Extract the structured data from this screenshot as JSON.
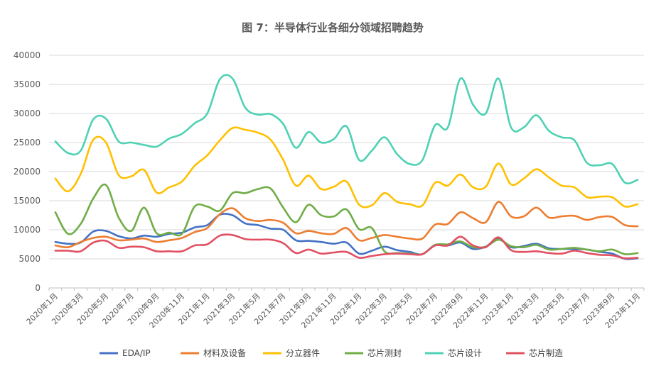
{
  "chart_data": {
    "type": "line",
    "title": "图 7：半导体行业各细分领域招聘趋势",
    "xlabel": "",
    "ylabel": "",
    "ylim": [
      0,
      40000
    ],
    "yticks": [
      0,
      5000,
      10000,
      15000,
      20000,
      25000,
      30000,
      35000,
      40000
    ],
    "grid": true,
    "legend_position": "bottom",
    "x": [
      "2020年1月",
      "2020年2月",
      "2020年3月",
      "2020年4月",
      "2020年5月",
      "2020年6月",
      "2020年7月",
      "2020年8月",
      "2020年9月",
      "2020年10月",
      "2020年11月",
      "2020年12月",
      "2021年1月",
      "2021年2月",
      "2021年3月",
      "2021年4月",
      "2021年5月",
      "2021年6月",
      "2021年7月",
      "2021年8月",
      "2021年9月",
      "2021年10月",
      "2021年11月",
      "2021年12月",
      "2022年1月",
      "2022年2月",
      "2022年3月",
      "2022年4月",
      "2022年5月",
      "2022年6月",
      "2022年7月",
      "2022年8月",
      "2022年9月",
      "2022年10月",
      "2022年11月",
      "2022年12月",
      "2023年1月",
      "2023年2月",
      "2023年3月",
      "2023年4月",
      "2023年5月",
      "2023年6月",
      "2023年7月",
      "2023年8月",
      "2023年9月",
      "2023年10月",
      "2023年11月"
    ],
    "x_tick_labels": [
      "2020年1月",
      "2020年3月",
      "2020年5月",
      "2020年7月",
      "2020年9月",
      "2020年11月",
      "2021年1月",
      "2021年3月",
      "2021年5月",
      "2021年7月",
      "2021年9月",
      "2021年11月",
      "2022年1月",
      "2022年3月",
      "2022年5月",
      "2022年7月",
      "2022年9月",
      "2022年11月",
      "2023年1月",
      "2023年3月",
      "2023年5月",
      "2023年7月",
      "2023年9月",
      "2023年11月"
    ],
    "series": [
      {
        "name": "EDA/IP",
        "color": "#4472C4",
        "values": [
          7900,
          7600,
          7800,
          9700,
          9800,
          8900,
          8500,
          9000,
          8800,
          9300,
          9500,
          10400,
          10800,
          12600,
          12500,
          11100,
          10800,
          10200,
          10000,
          8200,
          8100,
          7900,
          7600,
          7800,
          5900,
          6400,
          7100,
          6500,
          6200,
          5800,
          7400,
          7300,
          7800,
          6700,
          7100,
          8500,
          7000,
          7200,
          7600,
          6800,
          6700,
          6700,
          6600,
          6200,
          5900,
          5000,
          5100
        ]
      },
      {
        "name": "材料及设备",
        "color": "#ED7D31",
        "values": [
          7300,
          7000,
          7900,
          8600,
          8800,
          8200,
          8300,
          8500,
          7900,
          8200,
          8600,
          9600,
          10300,
          12700,
          13700,
          12000,
          11500,
          11700,
          11200,
          9400,
          9800,
          9400,
          9300,
          10300,
          8200,
          8600,
          9100,
          8800,
          8500,
          8500,
          10900,
          11000,
          13000,
          12000,
          11300,
          14800,
          12300,
          12300,
          13800,
          12100,
          12300,
          12400,
          11700,
          12200,
          12200,
          10800,
          10600
        ]
      },
      {
        "name": "分立器件",
        "color": "#FFC000",
        "values": [
          18800,
          16600,
          19600,
          25500,
          25000,
          19400,
          19200,
          20300,
          16400,
          17300,
          18300,
          21000,
          22800,
          25400,
          27500,
          27200,
          26700,
          25500,
          22000,
          17600,
          19300,
          17000,
          17400,
          18300,
          14300,
          14200,
          16300,
          14800,
          14400,
          14200,
          18100,
          17600,
          19500,
          17300,
          17400,
          21400,
          17800,
          18800,
          20400,
          19000,
          17600,
          17300,
          15600,
          15700,
          15600,
          14000,
          14400
        ]
      },
      {
        "name": "芯片测封",
        "color": "#70AD47",
        "values": [
          13000,
          9300,
          11000,
          15400,
          17700,
          12100,
          9800,
          13800,
          9400,
          9500,
          9300,
          14000,
          14000,
          13300,
          16300,
          16300,
          17000,
          17100,
          13800,
          11300,
          14300,
          12500,
          12300,
          13500,
          10100,
          10300,
          6300,
          6000,
          5900,
          5800,
          7400,
          7500,
          8000,
          7000,
          7100,
          8300,
          7200,
          7000,
          7400,
          6600,
          6700,
          6900,
          6600,
          6300,
          6600,
          5800,
          6000
        ]
      },
      {
        "name": "芯片设计",
        "color": "#4FD1B4",
        "values": [
          25200,
          23200,
          23600,
          29000,
          29100,
          25200,
          25000,
          24600,
          24300,
          25700,
          26500,
          28300,
          30000,
          35900,
          36000,
          31000,
          29800,
          29900,
          28200,
          24100,
          26800,
          25000,
          25600,
          27800,
          22000,
          23600,
          25900,
          23000,
          21300,
          22000,
          28000,
          27600,
          36000,
          31500,
          30000,
          36000,
          27600,
          27600,
          29700,
          27000,
          25900,
          25400,
          21500,
          21100,
          21300,
          18100,
          18600
        ]
      },
      {
        "name": "芯片制造",
        "color": "#E15062",
        "values": [
          6400,
          6400,
          6300,
          7800,
          8100,
          6900,
          7100,
          7000,
          6300,
          6300,
          6300,
          7300,
          7500,
          9000,
          9100,
          8400,
          8300,
          8300,
          7700,
          6000,
          6600,
          5900,
          6100,
          6200,
          5200,
          5500,
          5800,
          5900,
          5800,
          5800,
          7300,
          7300,
          8800,
          7300,
          7000,
          8700,
          6500,
          6200,
          6300,
          6000,
          5900,
          6400,
          6000,
          5700,
          5600,
          5100,
          5200
        ]
      }
    ]
  }
}
